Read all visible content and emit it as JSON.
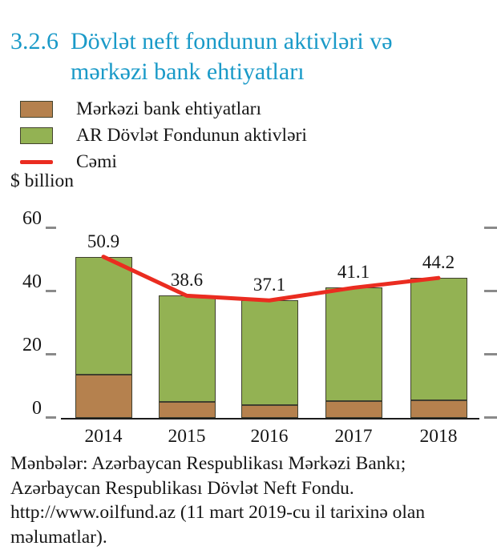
{
  "title": {
    "number": "3.2.6",
    "text": "Dövlət neft fondunun aktivləri və mərkəzi bank ehtiyatları"
  },
  "legend": {
    "items": [
      {
        "label": "Mərkəzi bank ehtiyatları",
        "swatch": "box",
        "color": "#b5814e"
      },
      {
        "label": "AR Dövlət Fondunun aktivləri",
        "swatch": "box",
        "color": "#93b253"
      },
      {
        "label": "Cəmi",
        "swatch": "line",
        "color": "#ea2c20"
      }
    ]
  },
  "chart_data": {
    "type": "bar",
    "stacked": true,
    "categories": [
      "2014",
      "2015",
      "2016",
      "2017",
      "2018"
    ],
    "series": [
      {
        "name": "Mərkəzi bank ehtiyatları",
        "type": "bar",
        "color": "#b5814e",
        "values": [
          13.7,
          5.0,
          4.0,
          5.3,
          5.6
        ]
      },
      {
        "name": "AR Dövlət Fondunun aktivləri",
        "type": "bar",
        "color": "#93b253",
        "values": [
          37.2,
          33.6,
          33.1,
          35.8,
          38.6
        ]
      },
      {
        "name": "Cəmi",
        "type": "line",
        "color": "#ea2c20",
        "values": [
          50.9,
          38.6,
          37.1,
          41.1,
          44.2
        ]
      }
    ],
    "total_labels": [
      "50.9",
      "38.6",
      "37.1",
      "41.1",
      "44.2"
    ],
    "title": "Dövlət neft fondunun aktivləri və mərkəzi bank ehtiyatları",
    "xlabel": "",
    "ylabel": "$ billion",
    "yticks": [
      0,
      20,
      40,
      60
    ],
    "ylim": [
      0,
      60
    ],
    "grid": false,
    "legend_position": "top-left"
  },
  "source": {
    "lines": [
      "Mənbələr: Azərbaycan Respublikası Mərkəzi Bankı;",
      "Azərbaycan Respublikası Dövlət Neft Fondu.",
      "http://www.oilfund.az (11 mart 2019-cu il tarixinə olan",
      "məlumatlar)."
    ]
  },
  "colors": {
    "title": "#1a9ac8",
    "text": "#161616",
    "tick": "#8a8a8a",
    "axis_line": "#1c1c1c",
    "bar_border": "#3f3f2f"
  }
}
